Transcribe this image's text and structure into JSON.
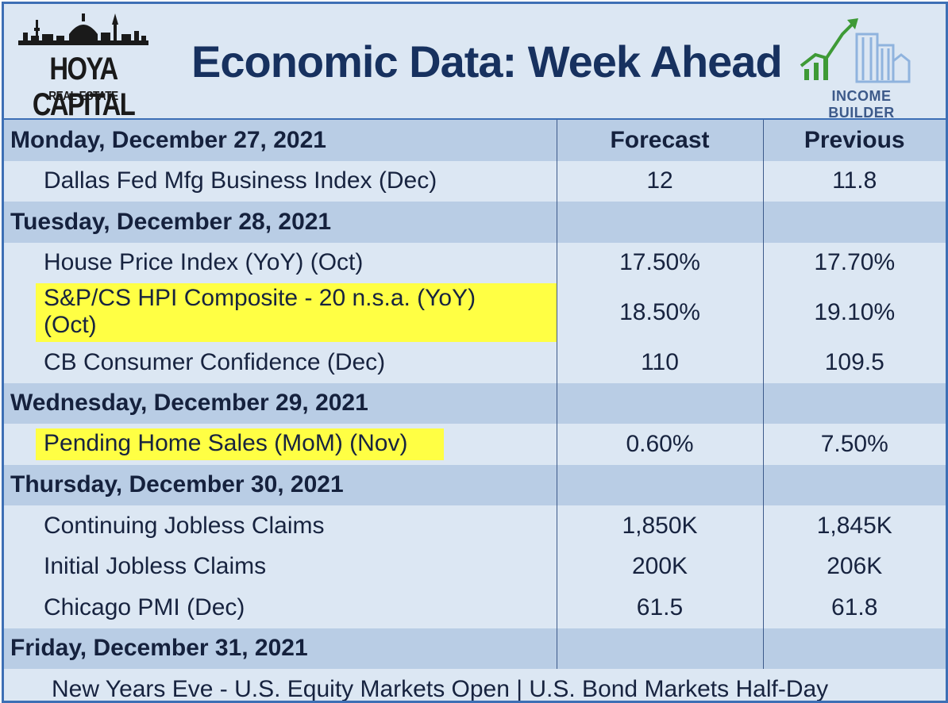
{
  "header": {
    "title": "Economic Data: Week Ahead",
    "logo_left": {
      "brand": "HOYA CAPITAL",
      "sub": "REAL ESTATE"
    },
    "logo_right": {
      "brand": "INCOME BUILDER"
    }
  },
  "columns": {
    "forecast": "Forecast",
    "previous": "Previous"
  },
  "days": [
    {
      "label": "Monday, December 27, 2021",
      "items": [
        {
          "name": "Dallas Fed Mfg Business Index (Dec)",
          "forecast": "12",
          "previous": "11.8",
          "highlight": false
        }
      ]
    },
    {
      "label": "Tuesday, December 28, 2021",
      "items": [
        {
          "name": "House Price Index (YoY) (Oct)",
          "forecast": "17.50%",
          "previous": "17.70%",
          "highlight": false
        },
        {
          "name": "S&P/CS HPI Composite - 20 n.s.a. (YoY) (Oct)",
          "forecast": "18.50%",
          "previous": "19.10%",
          "highlight": true
        },
        {
          "name": "CB Consumer Confidence (Dec)",
          "forecast": "110",
          "previous": "109.5",
          "highlight": false
        }
      ]
    },
    {
      "label": "Wednesday, December 29, 2021",
      "items": [
        {
          "name": "Pending Home Sales (MoM) (Nov)",
          "forecast": "0.60%",
          "previous": "7.50%",
          "highlight": true
        }
      ]
    },
    {
      "label": "Thursday, December 30, 2021",
      "items": [
        {
          "name": "Continuing Jobless Claims",
          "forecast": "1,850K",
          "previous": "1,845K",
          "highlight": false
        },
        {
          "name": "Initial Jobless Claims",
          "forecast": "200K",
          "previous": "206K",
          "highlight": false
        },
        {
          "name": "Chicago PMI (Dec)",
          "forecast": "61.5",
          "previous": "61.8",
          "highlight": false
        }
      ]
    },
    {
      "label": "Friday, December 31, 2021",
      "note": "New Years Eve -  U.S. Equity Markets Open | U.S. Bond Markets Half-Day"
    }
  ],
  "colors": {
    "border": "#3d6fb5",
    "day_row": "#b9cde5",
    "item_row": "#dce7f3",
    "title": "#17315f",
    "highlight": "#ffff44"
  }
}
